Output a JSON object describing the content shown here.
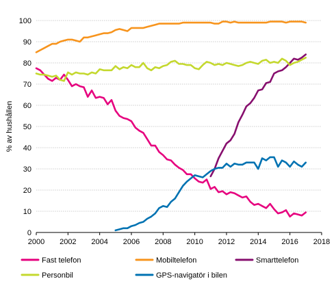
{
  "chart_data": {
    "type": "line",
    "title": "",
    "xlabel": "",
    "ylabel": "% av hushållen",
    "xlim": [
      2000,
      2018
    ],
    "ylim": [
      0,
      100
    ],
    "x_ticks": [
      "2000",
      "2002",
      "2004",
      "2006",
      "2008",
      "2010",
      "2012",
      "2014",
      "2016",
      "2018"
    ],
    "y_ticks": [
      "0",
      "10",
      "20",
      "30",
      "40",
      "50",
      "60",
      "70",
      "80",
      "90",
      "100"
    ],
    "grid": "horizontal",
    "legend_position": "bottom",
    "series": [
      {
        "name": "Fast telefon",
        "color": "#e6007e",
        "points": [
          [
            2000.0,
            77.5
          ],
          [
            2000.25,
            76.5
          ],
          [
            2000.5,
            74.5
          ],
          [
            2000.75,
            72.5
          ],
          [
            2001.0,
            71.5
          ],
          [
            2001.25,
            73
          ],
          [
            2001.5,
            72
          ],
          [
            2001.75,
            74.5
          ],
          [
            2002.0,
            72
          ],
          [
            2002.25,
            69
          ],
          [
            2002.5,
            70
          ],
          [
            2002.75,
            69
          ],
          [
            2003.0,
            68.5
          ],
          [
            2003.25,
            64
          ],
          [
            2003.5,
            67
          ],
          [
            2003.75,
            63.5
          ],
          [
            2004.0,
            64
          ],
          [
            2004.25,
            63.5
          ],
          [
            2004.5,
            60.5
          ],
          [
            2004.75,
            62.5
          ],
          [
            2005.0,
            57.5
          ],
          [
            2005.25,
            55
          ],
          [
            2005.5,
            54
          ],
          [
            2005.75,
            53.5
          ],
          [
            2006.0,
            52.5
          ],
          [
            2006.25,
            49.5
          ],
          [
            2006.5,
            48
          ],
          [
            2006.75,
            47
          ],
          [
            2007.0,
            44
          ],
          [
            2007.25,
            41
          ],
          [
            2007.5,
            41
          ],
          [
            2007.75,
            38
          ],
          [
            2008.0,
            36.5
          ],
          [
            2008.25,
            34.5
          ],
          [
            2008.5,
            34
          ],
          [
            2008.75,
            32
          ],
          [
            2009.0,
            30.5
          ],
          [
            2009.25,
            29.5
          ],
          [
            2009.5,
            27.5
          ],
          [
            2009.75,
            27.5
          ],
          [
            2010.0,
            25.5
          ],
          [
            2010.25,
            24
          ],
          [
            2010.5,
            23.5
          ],
          [
            2010.75,
            25
          ],
          [
            2011.0,
            20.5
          ],
          [
            2011.25,
            21.5
          ],
          [
            2011.5,
            19
          ],
          [
            2011.75,
            19.5
          ],
          [
            2012.0,
            18
          ],
          [
            2012.25,
            19
          ],
          [
            2012.5,
            18.5
          ],
          [
            2012.75,
            17.5
          ],
          [
            2013.0,
            16.5
          ],
          [
            2013.25,
            17
          ],
          [
            2013.5,
            14.5
          ],
          [
            2013.75,
            13
          ],
          [
            2014.0,
            13.5
          ],
          [
            2014.25,
            12.5
          ],
          [
            2014.5,
            11.5
          ],
          [
            2014.75,
            13.5
          ],
          [
            2015.0,
            11
          ],
          [
            2015.25,
            9
          ],
          [
            2015.5,
            9.5
          ],
          [
            2015.75,
            10.5
          ],
          [
            2016.0,
            7.5
          ],
          [
            2016.25,
            9
          ],
          [
            2016.5,
            8.5
          ],
          [
            2016.75,
            8
          ],
          [
            2017.0,
            9.5
          ]
        ]
      },
      {
        "name": "Mobiltelefon",
        "color": "#f7941d",
        "points": [
          [
            2000.0,
            85
          ],
          [
            2000.25,
            86
          ],
          [
            2000.5,
            87
          ],
          [
            2000.75,
            88
          ],
          [
            2001.0,
            89
          ],
          [
            2001.25,
            89
          ],
          [
            2001.5,
            90
          ],
          [
            2001.75,
            90.5
          ],
          [
            2002.0,
            91
          ],
          [
            2002.25,
            91
          ],
          [
            2002.5,
            90.5
          ],
          [
            2002.75,
            90
          ],
          [
            2003.0,
            92
          ],
          [
            2003.25,
            92
          ],
          [
            2003.5,
            92.5
          ],
          [
            2003.75,
            93
          ],
          [
            2004.0,
            93.5
          ],
          [
            2004.25,
            94
          ],
          [
            2004.5,
            94
          ],
          [
            2004.75,
            94.5
          ],
          [
            2005.0,
            95.5
          ],
          [
            2005.25,
            96
          ],
          [
            2005.5,
            95.5
          ],
          [
            2005.75,
            95
          ],
          [
            2006.0,
            96.5
          ],
          [
            2006.25,
            96.5
          ],
          [
            2006.5,
            96.5
          ],
          [
            2006.75,
            96.5
          ],
          [
            2007.0,
            97
          ],
          [
            2007.25,
            97.5
          ],
          [
            2007.5,
            98
          ],
          [
            2007.75,
            98.5
          ],
          [
            2008.0,
            98.5
          ],
          [
            2008.25,
            98.5
          ],
          [
            2008.5,
            98.5
          ],
          [
            2008.75,
            98.5
          ],
          [
            2009.0,
            98.5
          ],
          [
            2009.25,
            99
          ],
          [
            2009.5,
            99
          ],
          [
            2009.75,
            99
          ],
          [
            2010.0,
            99
          ],
          [
            2010.25,
            99
          ],
          [
            2010.5,
            99
          ],
          [
            2010.75,
            99
          ],
          [
            2011.0,
            99
          ],
          [
            2011.25,
            98.5
          ],
          [
            2011.5,
            98.5
          ],
          [
            2011.75,
            99.5
          ],
          [
            2012.0,
            99.5
          ],
          [
            2012.25,
            99
          ],
          [
            2012.5,
            99.5
          ],
          [
            2012.75,
            99
          ],
          [
            2013.0,
            99
          ],
          [
            2013.25,
            99
          ],
          [
            2013.5,
            99
          ],
          [
            2013.75,
            99
          ],
          [
            2014.0,
            99
          ],
          [
            2014.25,
            99
          ],
          [
            2014.5,
            99
          ],
          [
            2014.75,
            99.5
          ],
          [
            2015.0,
            99.5
          ],
          [
            2015.25,
            99.5
          ],
          [
            2015.5,
            99.5
          ],
          [
            2015.75,
            99
          ],
          [
            2016.0,
            99.5
          ],
          [
            2016.25,
            99.5
          ],
          [
            2016.5,
            99.5
          ],
          [
            2016.75,
            99.5
          ],
          [
            2017.0,
            99
          ]
        ]
      },
      {
        "name": "Smarttelefon",
        "color": "#870f6e",
        "points": [
          [
            2011.0,
            26.5
          ],
          [
            2011.25,
            30
          ],
          [
            2011.5,
            35
          ],
          [
            2011.75,
            38.5
          ],
          [
            2012.0,
            42
          ],
          [
            2012.25,
            43.5
          ],
          [
            2012.5,
            46.5
          ],
          [
            2012.75,
            52
          ],
          [
            2013.0,
            55.5
          ],
          [
            2013.25,
            59.5
          ],
          [
            2013.5,
            61
          ],
          [
            2013.75,
            63.5
          ],
          [
            2014.0,
            67
          ],
          [
            2014.25,
            67.5
          ],
          [
            2014.5,
            70.5
          ],
          [
            2014.75,
            71
          ],
          [
            2015.0,
            75
          ],
          [
            2015.25,
            76
          ],
          [
            2015.5,
            76.5
          ],
          [
            2015.75,
            78
          ],
          [
            2016.0,
            80
          ],
          [
            2016.25,
            82
          ],
          [
            2016.5,
            81.5
          ],
          [
            2016.75,
            82.5
          ],
          [
            2017.0,
            84
          ]
        ]
      },
      {
        "name": "Personbil",
        "color": "#c4d82e",
        "points": [
          [
            2000.0,
            75
          ],
          [
            2000.25,
            74.5
          ],
          [
            2000.5,
            74.5
          ],
          [
            2000.75,
            74
          ],
          [
            2001.0,
            73.5
          ],
          [
            2001.25,
            74
          ],
          [
            2001.5,
            72
          ],
          [
            2001.75,
            71.5
          ],
          [
            2002.0,
            75.5
          ],
          [
            2002.25,
            74.5
          ],
          [
            2002.5,
            75.5
          ],
          [
            2002.75,
            75
          ],
          [
            2003.0,
            75
          ],
          [
            2003.25,
            74.5
          ],
          [
            2003.5,
            75.5
          ],
          [
            2003.75,
            75
          ],
          [
            2004.0,
            77
          ],
          [
            2004.25,
            76.5
          ],
          [
            2004.5,
            76.5
          ],
          [
            2004.75,
            76.5
          ],
          [
            2005.0,
            78.5
          ],
          [
            2005.25,
            77
          ],
          [
            2005.5,
            78
          ],
          [
            2005.75,
            77.5
          ],
          [
            2006.0,
            79
          ],
          [
            2006.25,
            78
          ],
          [
            2006.5,
            78
          ],
          [
            2006.75,
            80
          ],
          [
            2007.0,
            77.5
          ],
          [
            2007.25,
            76.5
          ],
          [
            2007.5,
            78
          ],
          [
            2007.75,
            77.5
          ],
          [
            2008.0,
            78.5
          ],
          [
            2008.25,
            79
          ],
          [
            2008.5,
            80.5
          ],
          [
            2008.75,
            81
          ],
          [
            2009.0,
            79.5
          ],
          [
            2009.25,
            79.5
          ],
          [
            2009.5,
            79
          ],
          [
            2009.75,
            79
          ],
          [
            2010.0,
            77.5
          ],
          [
            2010.25,
            77
          ],
          [
            2010.5,
            79
          ],
          [
            2010.75,
            80.5
          ],
          [
            2011.0,
            80
          ],
          [
            2011.25,
            79
          ],
          [
            2011.5,
            79.5
          ],
          [
            2011.75,
            79
          ],
          [
            2012.0,
            80
          ],
          [
            2012.25,
            79.5
          ],
          [
            2012.5,
            79
          ],
          [
            2012.75,
            78.5
          ],
          [
            2013.0,
            79
          ],
          [
            2013.25,
            80
          ],
          [
            2013.5,
            80.5
          ],
          [
            2013.75,
            80
          ],
          [
            2014.0,
            79.5
          ],
          [
            2014.25,
            81
          ],
          [
            2014.5,
            81.5
          ],
          [
            2014.75,
            80
          ],
          [
            2015.0,
            80.5
          ],
          [
            2015.25,
            80
          ],
          [
            2015.5,
            82
          ],
          [
            2015.75,
            81
          ],
          [
            2016.0,
            79
          ],
          [
            2016.25,
            80
          ],
          [
            2016.5,
            80.5
          ],
          [
            2016.75,
            81.5
          ],
          [
            2017.0,
            82.5
          ]
        ]
      },
      {
        "name": "GPS-navigatör i bilen",
        "color": "#0072b2",
        "points": [
          [
            2005.0,
            1
          ],
          [
            2005.25,
            1.5
          ],
          [
            2005.5,
            2
          ],
          [
            2005.75,
            2
          ],
          [
            2006.0,
            3
          ],
          [
            2006.25,
            3.5
          ],
          [
            2006.5,
            4.5
          ],
          [
            2006.75,
            5
          ],
          [
            2007.0,
            6.5
          ],
          [
            2007.25,
            7.5
          ],
          [
            2007.5,
            9
          ],
          [
            2007.75,
            11.5
          ],
          [
            2008.0,
            12.5
          ],
          [
            2008.25,
            12
          ],
          [
            2008.5,
            14.5
          ],
          [
            2008.75,
            16
          ],
          [
            2009.0,
            19
          ],
          [
            2009.25,
            22
          ],
          [
            2009.5,
            24
          ],
          [
            2009.75,
            25.5
          ],
          [
            2010.0,
            27
          ],
          [
            2010.25,
            26.5
          ],
          [
            2010.5,
            26
          ],
          [
            2010.75,
            27.5
          ],
          [
            2011.0,
            29
          ],
          [
            2011.25,
            30
          ],
          [
            2011.5,
            30.5
          ],
          [
            2011.75,
            30.5
          ],
          [
            2012.0,
            32.5
          ],
          [
            2012.25,
            31
          ],
          [
            2012.5,
            32.5
          ],
          [
            2012.75,
            32
          ],
          [
            2013.0,
            32
          ],
          [
            2013.25,
            33
          ],
          [
            2013.5,
            33
          ],
          [
            2013.75,
            33
          ],
          [
            2014.0,
            30
          ],
          [
            2014.25,
            35
          ],
          [
            2014.5,
            34
          ],
          [
            2014.75,
            35.5
          ],
          [
            2015.0,
            35.5
          ],
          [
            2015.25,
            31
          ],
          [
            2015.5,
            34
          ],
          [
            2015.75,
            33
          ],
          [
            2016.0,
            31
          ],
          [
            2016.25,
            33.5
          ],
          [
            2016.5,
            32
          ],
          [
            2016.75,
            31
          ],
          [
            2017.0,
            33
          ]
        ]
      }
    ]
  }
}
